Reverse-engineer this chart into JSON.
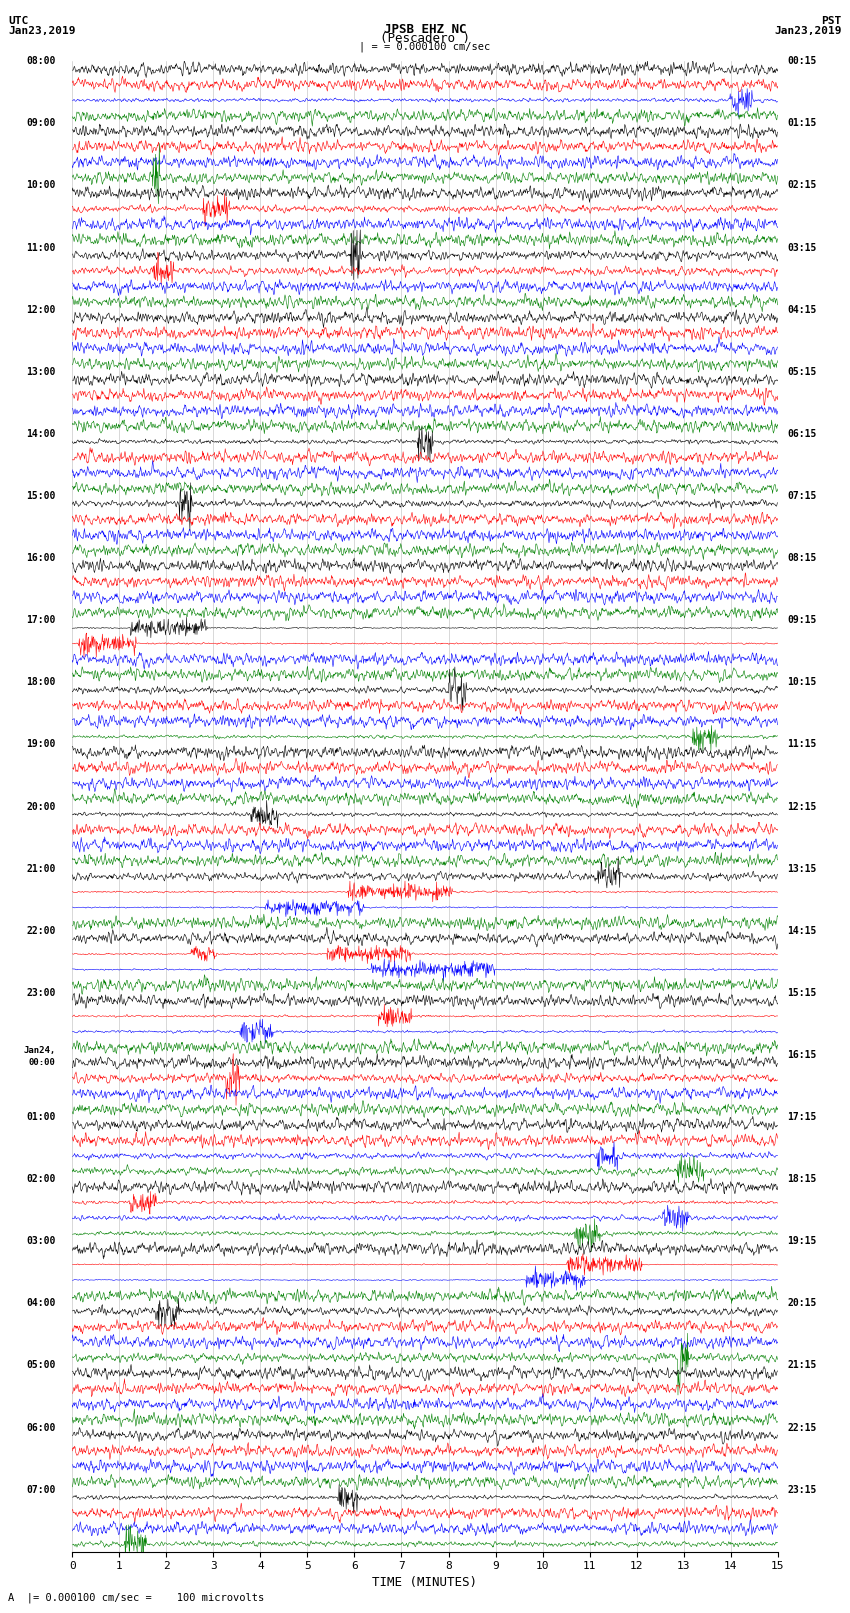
{
  "title_line1": "JPSB EHZ NC",
  "title_line2": "(Pescadero )",
  "scale_text": "= 0.000100 cm/sec",
  "bottom_text": "A  |= 0.000100 cm/sec =    100 microvolts",
  "xlabel": "TIME (MINUTES)",
  "left_label_utc": "UTC",
  "left_date": "Jan23,2019",
  "right_label_pst": "PST",
  "right_date": "Jan23,2019",
  "background_color": "#ffffff",
  "colors": [
    "black",
    "red",
    "blue",
    "green"
  ],
  "num_groups": 24,
  "traces_per_group": 4,
  "utc_times": [
    "08:00",
    "09:00",
    "10:00",
    "11:00",
    "12:00",
    "13:00",
    "14:00",
    "15:00",
    "16:00",
    "17:00",
    "18:00",
    "19:00",
    "20:00",
    "21:00",
    "22:00",
    "23:00",
    "Jan24,\n00:00",
    "01:00",
    "02:00",
    "03:00",
    "04:00",
    "05:00",
    "06:00",
    "07:00"
  ],
  "pst_times": [
    "00:15",
    "01:15",
    "02:15",
    "03:15",
    "04:15",
    "05:15",
    "06:15",
    "07:15",
    "08:15",
    "09:15",
    "10:15",
    "11:15",
    "12:15",
    "13:15",
    "14:15",
    "15:15",
    "16:15",
    "17:15",
    "18:15",
    "19:15",
    "20:15",
    "21:15",
    "22:15",
    "23:15"
  ],
  "xmin": 0,
  "xmax": 15,
  "xticks": [
    0,
    1,
    2,
    3,
    4,
    5,
    6,
    7,
    8,
    9,
    10,
    11,
    12,
    13,
    14,
    15
  ],
  "seed": 42,
  "noise_amp": 0.18,
  "grid_color": "#bbbbbb",
  "grid_linewidth": 0.4
}
